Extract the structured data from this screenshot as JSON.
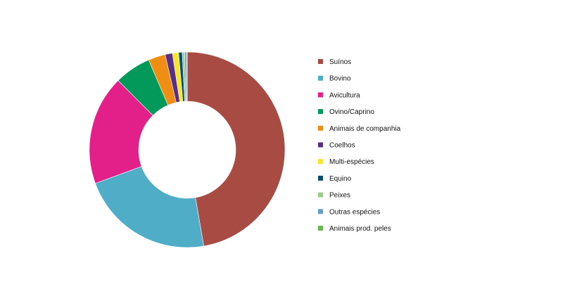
{
  "chart_data": {
    "type": "pie",
    "donut": true,
    "title": "",
    "legend_position": "right",
    "series": [
      {
        "name": "Suínos",
        "value": 47.0,
        "color": "#A84B43"
      },
      {
        "name": "Bovino",
        "value": 22.0,
        "color": "#50ADC8"
      },
      {
        "name": "Avicultura",
        "value": 18.0,
        "color": "#E3208A"
      },
      {
        "name": "Ovino/Caprino",
        "value": 6.0,
        "color": "#03995B"
      },
      {
        "name": "Animais de companhia",
        "value": 2.8,
        "color": "#EE8E12"
      },
      {
        "name": "Coelhos",
        "value": 1.2,
        "color": "#5B2E86"
      },
      {
        "name": "Multi-espécies",
        "value": 1.0,
        "color": "#F6E52A"
      },
      {
        "name": "Equino",
        "value": 0.6,
        "color": "#0A4E6E"
      },
      {
        "name": "Peixes",
        "value": 0.4,
        "color": "#9FCB8E"
      },
      {
        "name": "Outras espécies",
        "value": 0.3,
        "color": "#6A9CCB"
      },
      {
        "name": "Animais prod. peles",
        "value": 0.1,
        "color": "#67B84E"
      }
    ]
  }
}
